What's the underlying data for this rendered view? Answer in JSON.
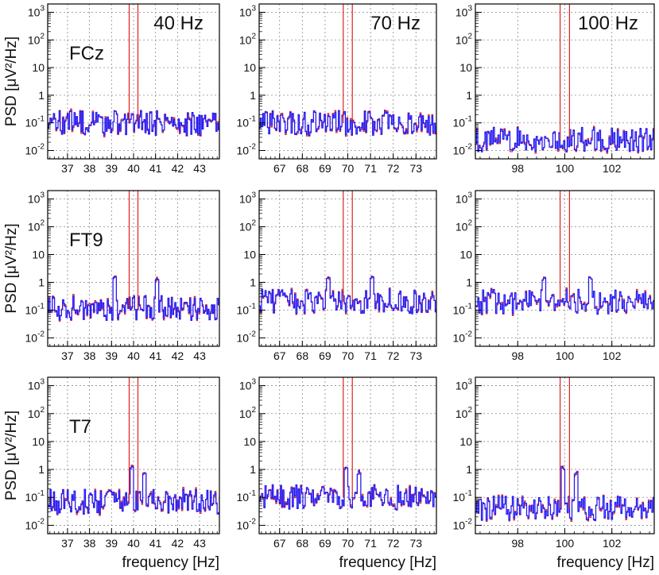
{
  "chart_data": {
    "type": "line",
    "layout": "3x3 grid",
    "yscale": "log",
    "ylim": [
      0.005,
      2000
    ],
    "yticks": [
      0.01,
      0.1,
      1,
      10,
      100,
      1000
    ],
    "ytick_labels": [
      {
        "base": "10",
        "exp": "-2"
      },
      {
        "base": "10",
        "exp": "-1"
      },
      {
        "base": "1",
        "exp": ""
      },
      {
        "base": "10",
        "exp": ""
      },
      {
        "base": "10",
        "exp": "2"
      },
      {
        "base": "10",
        "exp": "3"
      }
    ],
    "ylabel": "PSD  [μV²/Hz]",
    "xlabel": "frequency  [Hz]",
    "grid": true,
    "colors": {
      "series_a": "#1a1aff",
      "series_b": "#e02020",
      "axis": "#000000",
      "grid": "#8a8a8a"
    },
    "columns": [
      {
        "title": "40 Hz",
        "xlim": [
          36.1,
          43.9
        ],
        "xticks": [
          37,
          38,
          39,
          40,
          41,
          42,
          43
        ],
        "stim": 40,
        "baseline": 0.09
      },
      {
        "title": "70 Hz",
        "xlim": [
          66.1,
          73.9
        ],
        "xticks": [
          67,
          68,
          69,
          70,
          71,
          72,
          73
        ],
        "stim": 70,
        "baseline": 0.09
      },
      {
        "title": "100 Hz",
        "xlim": [
          96.2,
          103.8
        ],
        "xticks": [
          98,
          100,
          102
        ],
        "stim": 100,
        "baseline": 0.09
      }
    ],
    "rows": [
      {
        "channel": "FCz",
        "level": 0.1,
        "peaks": []
      },
      {
        "channel": "FT9",
        "level": 0.12,
        "peaks": [
          {
            "offset": -0.9,
            "value": 1.5
          },
          {
            "offset": 1.05,
            "value": 1.5
          }
        ]
      },
      {
        "channel": "T7",
        "level": 0.07,
        "peaks": [
          {
            "offset": -0.1,
            "value": 1.2
          },
          {
            "offset": 0.45,
            "value": 0.8
          }
        ]
      }
    ],
    "row_levels_by_column": [
      [
        0.1,
        0.1,
        0.025
      ],
      [
        0.12,
        0.2,
        0.2
      ],
      [
        0.07,
        0.1,
        0.04
      ]
    ]
  }
}
